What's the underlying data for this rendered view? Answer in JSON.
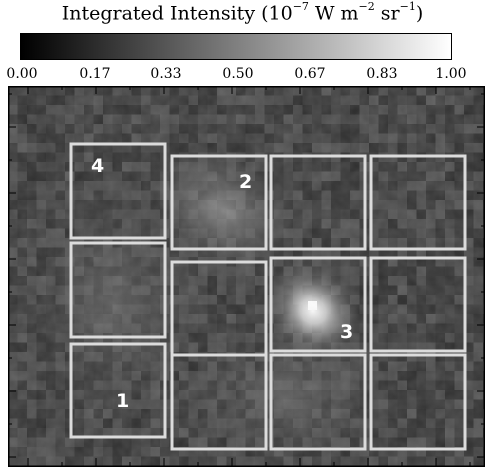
{
  "colorbar": {
    "title_main": "Integrated Intensity (10",
    "title_exp1": "−7",
    "title_mid": " W m",
    "title_exp2": "−2",
    "title_mid2": " sr",
    "title_exp3": "−1",
    "title_end": ")",
    "tick_labels": [
      "0.00",
      "0.17",
      "0.33",
      "0.50",
      "0.67",
      "0.83",
      "1.00"
    ],
    "range": [
      0,
      1
    ],
    "colormap": "grayscale"
  },
  "regions": [
    {
      "label": "4"
    },
    {
      "label": "2"
    },
    {
      "label": "3"
    },
    {
      "label": "1"
    }
  ],
  "colors": {
    "box_outline": "#dcdcdc",
    "region_label": "#ffffff",
    "frame": "#000000"
  }
}
